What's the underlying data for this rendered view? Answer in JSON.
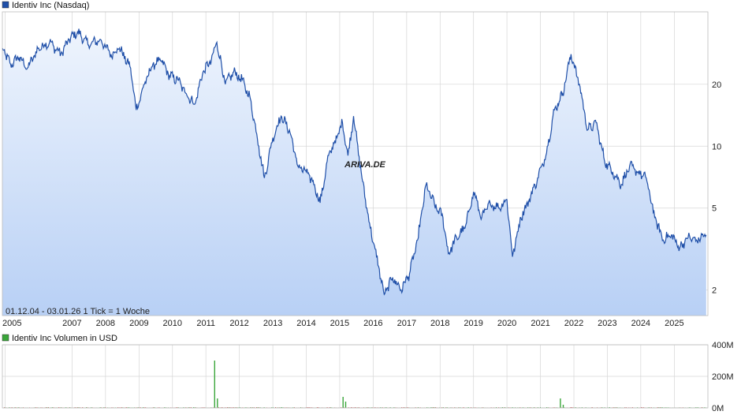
{
  "colors": {
    "price_line": "#1f4fa8",
    "area_top": "#eef4fd",
    "area_bottom": "#b8d0f5",
    "grid": "#d6d6d6",
    "volume_up": "#3aa63a",
    "volume_down": "#c43a3a",
    "legend_price": "#1f4fa8",
    "legend_volume": "#3aa63a",
    "watermark": "#c8c8c8"
  },
  "watermark": "ARIVA.DE",
  "range_note": "01.12.04 - 03.01.26    1 Tick = 1 Woche",
  "chart_data": [
    {
      "type": "line",
      "legend": "Identiv Inc (Nasdaq)",
      "y_scale": "log",
      "ylim": [
        1.5,
        45
      ],
      "y_ticks": [
        {
          "value": 2,
          "label": "2"
        },
        {
          "value": 5,
          "label": "5"
        },
        {
          "value": 10,
          "label": "10"
        },
        {
          "value": 20,
          "label": "20"
        }
      ],
      "xlim": [
        "2004-12-01",
        "2026-01-03"
      ],
      "x_ticks": [
        {
          "date": "2005-01-01",
          "label": "2005"
        },
        {
          "date": "2007-01-01",
          "label": "2007"
        },
        {
          "date": "2008-01-01",
          "label": "2008"
        },
        {
          "date": "2009-01-01",
          "label": "2009"
        },
        {
          "date": "2010-01-01",
          "label": "2010"
        },
        {
          "date": "2011-01-01",
          "label": "2011"
        },
        {
          "date": "2012-01-01",
          "label": "2012"
        },
        {
          "date": "2013-01-01",
          "label": "2013"
        },
        {
          "date": "2014-01-01",
          "label": "2014"
        },
        {
          "date": "2015-01-01",
          "label": "2015"
        },
        {
          "date": "2016-01-01",
          "label": "2016"
        },
        {
          "date": "2017-01-01",
          "label": "2017"
        },
        {
          "date": "2018-01-01",
          "label": "2018"
        },
        {
          "date": "2019-01-01",
          "label": "2019"
        },
        {
          "date": "2020-01-01",
          "label": "2020"
        },
        {
          "date": "2021-01-01",
          "label": "2021"
        },
        {
          "date": "2022-01-01",
          "label": "2022"
        },
        {
          "date": "2023-01-01",
          "label": "2023"
        },
        {
          "date": "2024-01-01",
          "label": "2024"
        },
        {
          "date": "2025-01-01",
          "label": "2025"
        }
      ],
      "points": [
        [
          "2004-12-01",
          30
        ],
        [
          "2005-03-01",
          25
        ],
        [
          "2005-06-01",
          27
        ],
        [
          "2005-09-01",
          24
        ],
        [
          "2006-01-01",
          30
        ],
        [
          "2006-05-01",
          32
        ],
        [
          "2006-09-01",
          28
        ],
        [
          "2006-12-01",
          33
        ],
        [
          "2007-03-01",
          36
        ],
        [
          "2007-07-01",
          31
        ],
        [
          "2007-11-01",
          33
        ],
        [
          "2008-03-01",
          28
        ],
        [
          "2008-06-01",
          30
        ],
        [
          "2008-10-01",
          24
        ],
        [
          "2008-12-01",
          15
        ],
        [
          "2009-03-01",
          20
        ],
        [
          "2009-06-01",
          25
        ],
        [
          "2009-09-01",
          26
        ],
        [
          "2009-12-01",
          22
        ],
        [
          "2010-03-01",
          21
        ],
        [
          "2010-06-01",
          18
        ],
        [
          "2010-09-01",
          16
        ],
        [
          "2010-12-01",
          23
        ],
        [
          "2011-03-01",
          26
        ],
        [
          "2011-05-01",
          32
        ],
        [
          "2011-08-01",
          20
        ],
        [
          "2011-11-01",
          23
        ],
        [
          "2012-02-01",
          21
        ],
        [
          "2012-05-01",
          17
        ],
        [
          "2012-08-01",
          10
        ],
        [
          "2012-10-01",
          7
        ],
        [
          "2013-01-01",
          11
        ],
        [
          "2013-04-01",
          14
        ],
        [
          "2013-07-01",
          12
        ],
        [
          "2013-10-01",
          8
        ],
        [
          "2014-01-01",
          7.5
        ],
        [
          "2014-04-01",
          6.5
        ],
        [
          "2014-06-01",
          5.3
        ],
        [
          "2014-09-01",
          9
        ],
        [
          "2014-12-01",
          11
        ],
        [
          "2015-02-01",
          13
        ],
        [
          "2015-04-01",
          9
        ],
        [
          "2015-06-01",
          14
        ],
        [
          "2015-09-01",
          7
        ],
        [
          "2015-12-01",
          4
        ],
        [
          "2016-03-01",
          2.6
        ],
        [
          "2016-05-01",
          1.9
        ],
        [
          "2016-08-01",
          2.3
        ],
        [
          "2016-11-01",
          2.0
        ],
        [
          "2017-02-01",
          2.4
        ],
        [
          "2017-05-01",
          3.5
        ],
        [
          "2017-08-01",
          6.5
        ],
        [
          "2017-11-01",
          5.2
        ],
        [
          "2018-02-01",
          4.5
        ],
        [
          "2018-04-01",
          3.0
        ],
        [
          "2018-07-01",
          3.6
        ],
        [
          "2018-10-01",
          4.0
        ],
        [
          "2019-01-01",
          6.0
        ],
        [
          "2019-04-01",
          4.5
        ],
        [
          "2019-07-01",
          5.3
        ],
        [
          "2019-10-01",
          5.0
        ],
        [
          "2020-01-01",
          5.5
        ],
        [
          "2020-03-01",
          2.9
        ],
        [
          "2020-06-01",
          4.5
        ],
        [
          "2020-09-01",
          5.5
        ],
        [
          "2020-12-01",
          7.0
        ],
        [
          "2021-03-01",
          9.0
        ],
        [
          "2021-06-01",
          15
        ],
        [
          "2021-09-01",
          18
        ],
        [
          "2021-12-01",
          28
        ],
        [
          "2022-03-01",
          20
        ],
        [
          "2022-06-01",
          12
        ],
        [
          "2022-09-01",
          13
        ],
        [
          "2022-12-01",
          8.5
        ],
        [
          "2023-03-01",
          7.5
        ],
        [
          "2023-06-01",
          6.5
        ],
        [
          "2023-09-01",
          8.0
        ],
        [
          "2023-12-01",
          7.5
        ],
        [
          "2024-03-01",
          7.0
        ],
        [
          "2024-06-01",
          4.5
        ],
        [
          "2024-09-01",
          3.5
        ],
        [
          "2024-12-01",
          3.7
        ],
        [
          "2025-03-01",
          3.2
        ],
        [
          "2025-06-01",
          3.6
        ],
        [
          "2025-09-01",
          3.5
        ],
        [
          "2025-12-15",
          3.7
        ]
      ]
    },
    {
      "type": "bar",
      "legend": "Identiv Inc Volumen in USD",
      "ylim": [
        0,
        400
      ],
      "y_ticks": [
        {
          "value": 0,
          "label": "0M"
        },
        {
          "value": 200,
          "label": "200M"
        },
        {
          "value": 400,
          "label": "400M"
        }
      ],
      "spikes_musd": [
        [
          "2011-04-01",
          300
        ],
        [
          "2011-05-01",
          60
        ],
        [
          "2015-02-01",
          70
        ],
        [
          "2015-03-01",
          40
        ],
        [
          "2021-08-01",
          60
        ],
        [
          "2021-09-01",
          20
        ]
      ],
      "baseline_musd": 3
    }
  ]
}
